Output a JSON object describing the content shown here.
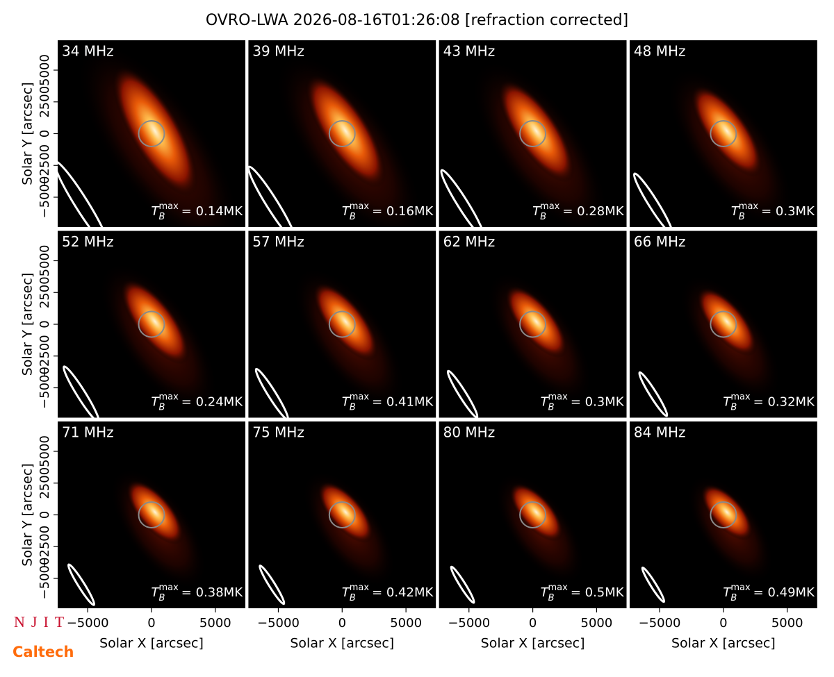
{
  "title": "OVRO-LWA 2026-08-16T01:26:08 [refraction corrected]",
  "logos": {
    "top": "NJIT",
    "bottom": "Caltech"
  },
  "chart_data": [
    {
      "type": "image",
      "title": "34 MHz",
      "annotation": {
        "symbol": "T",
        "subscript": "B",
        "superscript": "max",
        "text": "= 0.14MK"
      },
      "xlim": [
        -7350,
        7350
      ],
      "ylim": [
        -7350,
        7350
      ],
      "ylabel": "Solar Y [arcsec]",
      "yticks": [
        {
          "value": -5000,
          "label": "−5000"
        },
        {
          "value": -2500,
          "label": "−2500"
        },
        0,
        2500,
        5000
      ]
    },
    {
      "type": "image",
      "title": "39 MHz",
      "annotation": {
        "symbol": "T",
        "subscript": "B",
        "superscript": "max",
        "text": "= 0.16MK"
      },
      "xlim": [
        -7350,
        7350
      ],
      "ylim": [
        -7350,
        7350
      ]
    },
    {
      "type": "image",
      "title": "43 MHz",
      "annotation": {
        "symbol": "T",
        "subscript": "B",
        "superscript": "max",
        "text": "= 0.28MK"
      },
      "xlim": [
        -7350,
        7350
      ],
      "ylim": [
        -7350,
        7350
      ]
    },
    {
      "type": "image",
      "title": "48 MHz",
      "annotation": {
        "symbol": "T",
        "subscript": "B",
        "superscript": "max",
        "text": "= 0.3MK"
      },
      "xlim": [
        -7350,
        7350
      ],
      "ylim": [
        -7350,
        7350
      ]
    },
    {
      "type": "image",
      "title": "52 MHz",
      "annotation": {
        "symbol": "T",
        "subscript": "B",
        "superscript": "max",
        "text": "= 0.24MK"
      },
      "xlim": [
        -7350,
        7350
      ],
      "ylim": [
        -7350,
        7350
      ],
      "ylabel": "Solar Y [arcsec]",
      "yticks": [
        {
          "value": -5000,
          "label": "−5000"
        },
        {
          "value": -2500,
          "label": "−2500"
        },
        0,
        2500,
        5000
      ]
    },
    {
      "type": "image",
      "title": "57 MHz",
      "annotation": {
        "symbol": "T",
        "subscript": "B",
        "superscript": "max",
        "text": "= 0.41MK"
      },
      "xlim": [
        -7350,
        7350
      ],
      "ylim": [
        -7350,
        7350
      ]
    },
    {
      "type": "image",
      "title": "62 MHz",
      "annotation": {
        "symbol": "T",
        "subscript": "B",
        "superscript": "max",
        "text": "= 0.3MK"
      },
      "xlim": [
        -7350,
        7350
      ],
      "ylim": [
        -7350,
        7350
      ]
    },
    {
      "type": "image",
      "title": "66 MHz",
      "annotation": {
        "symbol": "T",
        "subscript": "B",
        "superscript": "max",
        "text": "= 0.32MK"
      },
      "xlim": [
        -7350,
        7350
      ],
      "ylim": [
        -7350,
        7350
      ]
    },
    {
      "type": "image",
      "title": "71 MHz",
      "annotation": {
        "symbol": "T",
        "subscript": "B",
        "superscript": "max",
        "text": "= 0.38MK"
      },
      "xlim": [
        -7350,
        7350
      ],
      "ylim": [
        -7350,
        7350
      ],
      "ylabel": "Solar Y [arcsec]",
      "yticks": [
        {
          "value": -5000,
          "label": "−5000"
        },
        {
          "value": -2500,
          "label": "−2500"
        },
        0,
        2500,
        5000
      ],
      "xlabel": "Solar X [arcsec]",
      "xticks": [
        {
          "value": -5000,
          "label": "−5000"
        },
        0,
        5000
      ]
    },
    {
      "type": "image",
      "title": "75 MHz",
      "annotation": {
        "symbol": "T",
        "subscript": "B",
        "superscript": "max",
        "text": "= 0.42MK"
      },
      "xlim": [
        -7350,
        7350
      ],
      "ylim": [
        -7350,
        7350
      ],
      "xlabel": "Solar X [arcsec]",
      "xticks": [
        {
          "value": -5000,
          "label": "−5000"
        },
        0,
        5000
      ]
    },
    {
      "type": "image",
      "title": "80 MHz",
      "annotation": {
        "symbol": "T",
        "subscript": "B",
        "superscript": "max",
        "text": "= 0.5MK"
      },
      "xlim": [
        -7350,
        7350
      ],
      "ylim": [
        -7350,
        7350
      ],
      "xlabel": "Solar X [arcsec]",
      "xticks": [
        {
          "value": -5000,
          "label": "−5000"
        },
        0,
        5000
      ]
    },
    {
      "type": "image",
      "title": "84 MHz",
      "annotation": {
        "symbol": "T",
        "subscript": "B",
        "superscript": "max",
        "text": "= 0.49MK"
      },
      "xlim": [
        -7350,
        7350
      ],
      "ylim": [
        -7350,
        7350
      ],
      "xlabel": "Solar X [arcsec]",
      "xticks": [
        {
          "value": -5000,
          "label": "−5000"
        },
        0,
        5000
      ]
    }
  ]
}
